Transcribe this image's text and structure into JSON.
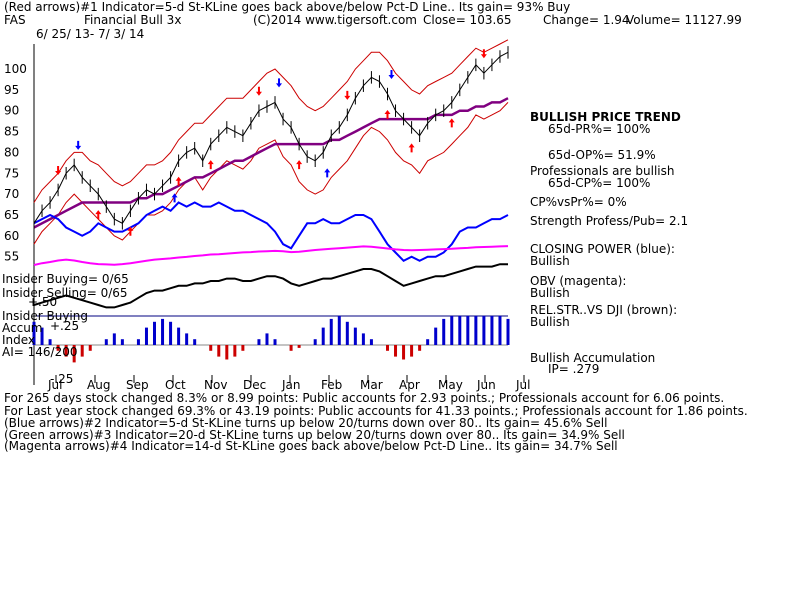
{
  "header": {
    "line1": "(Red arrows)#1 Indicator=5-d St-KLine goes back above/below Pct-D Line.. Its gain= 93% Buy",
    "symbol": "FAS",
    "name": "Financial Bull 3x",
    "copyright": "(C)2014 www.tigersoft.com",
    "close": "Close=  103.65",
    "change": "Change= 1.94",
    "volume": "Volume= 11127.99",
    "dates": "6/ 25/ 13- 7/ 3/ 14"
  },
  "right_labels": {
    "bullish_trend": "BULLISH PRICE TREND",
    "pr": "65d-PR%= 100%",
    "op": "65d-OP%= 51.9%",
    "prof_bullish": "Professionals are bullish",
    "cp": "65d-CP%= 100%",
    "cpvspr": "CP%vsPr%=  0%",
    "strength": "Strength Profess/Pub= 2.1",
    "closing_power": "CLOSING POWER (blue):",
    "closing_power_val": "Bullish",
    "obv": "OBV (magenta):",
    "obv_val": "Bullish",
    "relstr": "REL.STR..VS DJI (brown):",
    "relstr_val": "Bullish",
    "accum": "Bullish Accumulation",
    "ip": "IP=  .279"
  },
  "left_labels": {
    "insider_buying": "Insider Buying= 0/65",
    "insider_selling": "Insider Selling= 0/65",
    "insider_buying2": "Insider Buying",
    "accum": "Accum",
    "index": "Index",
    "ai": "AI= 146/200",
    "plus50": "+.50",
    "plus25": "+.25",
    "minus25": "-.25"
  },
  "footer": {
    "line1": "For 265 days stock changed  8.3% or  8.99 points:  Public accounts for  2.93 points.;  Professionals account for  6.06 points.",
    "line2": "For Last year stock changed  69.3% or  43.19 points:  Public accounts for  41.33 points.;  Professionals account for  1.86 points.",
    "line3": "(Blue arrows)#2 Indicator=5-d St-KLine turns up below 20/turns down over 80.. Its gain= 45.6% Sell",
    "line4": "(Green arrows)#3 Indicator=20-d St-KLine turns up below 20/turns down over 80.. Its gain= 34.9% Sell",
    "line5": "(Magenta arrows)#4 Indicator=14-d St-KLine goes back above/below Pct-D Line.. Its gain= 34.7% Sell"
  },
  "colors": {
    "price": "#000000",
    "bands": "#cc0000",
    "ma": "#800080",
    "closing_power": "#0000ff",
    "obv": "#ff00ff",
    "relstr": "#000000",
    "accum_pos": "#0000cc",
    "accum_neg": "#cc0000",
    "buy_arrow": "#ff0000",
    "sell_arrow": "#ff0000",
    "blue_arrow": "#0000ff"
  },
  "chart_data": {
    "type": "line",
    "title": "",
    "y_ticks": [
      55,
      60,
      65,
      70,
      75,
      80,
      85,
      90,
      95,
      100
    ],
    "ylim": [
      53,
      106
    ],
    "x_months": [
      "Jul",
      "Aug",
      "Sep",
      "Oct",
      "Nov",
      "Dec",
      "Jan",
      "Feb",
      "Mar",
      "Apr",
      "May",
      "Jun",
      "Jul"
    ],
    "price": [
      63,
      66,
      68,
      71,
      75,
      77,
      74,
      72,
      70,
      67,
      64,
      63,
      66,
      69,
      71,
      70,
      72,
      74,
      78,
      80,
      81,
      78,
      82,
      84,
      86,
      85,
      84,
      87,
      90,
      91,
      92,
      88,
      86,
      82,
      79,
      78,
      80,
      84,
      86,
      89,
      93,
      96,
      98,
      97,
      94,
      90,
      88,
      86,
      84,
      87,
      89,
      90,
      92,
      95,
      98,
      101,
      99,
      101,
      103,
      104
    ],
    "upper_band": [
      68,
      71,
      73,
      75,
      78,
      80,
      80,
      78,
      77,
      75,
      73,
      72,
      73,
      75,
      77,
      77,
      78,
      80,
      83,
      85,
      87,
      87,
      89,
      91,
      93,
      93,
      93,
      95,
      97,
      99,
      100,
      98,
      96,
      93,
      91,
      90,
      91,
      93,
      95,
      97,
      100,
      102,
      104,
      104,
      102,
      99,
      97,
      95,
      94,
      96,
      97,
      98,
      99,
      101,
      103,
      105,
      104,
      105,
      106,
      107
    ],
    "lower_band": [
      58,
      61,
      63,
      65,
      68,
      70,
      68,
      66,
      64,
      62,
      60,
      59,
      61,
      63,
      65,
      65,
      66,
      68,
      71,
      73,
      74,
      71,
      74,
      76,
      78,
      77,
      76,
      78,
      81,
      82,
      83,
      79,
      77,
      73,
      71,
      70,
      71,
      74,
      76,
      78,
      81,
      84,
      86,
      85,
      83,
      80,
      78,
      77,
      75,
      78,
      79,
      80,
      82,
      84,
      86,
      89,
      88,
      89,
      90,
      92
    ],
    "ma": [
      62,
      63,
      64,
      65,
      66,
      67,
      68,
      68,
      68,
      68,
      68,
      68,
      68,
      69,
      69,
      70,
      70,
      71,
      72,
      73,
      74,
      74,
      75,
      76,
      77,
      78,
      78,
      79,
      80,
      81,
      82,
      82,
      82,
      82,
      82,
      82,
      82,
      83,
      83,
      84,
      85,
      86,
      87,
      88,
      88,
      88,
      88,
      88,
      88,
      88,
      89,
      89,
      89,
      90,
      90,
      91,
      91,
      92,
      92,
      93
    ],
    "closing_power": [
      63,
      64,
      65,
      64,
      62,
      61,
      60,
      61,
      63,
      62,
      61,
      61,
      62,
      63,
      65,
      66,
      67,
      66,
      68,
      67,
      68,
      67,
      67,
      68,
      67,
      66,
      66,
      65,
      64,
      63,
      61,
      58,
      57,
      60,
      63,
      63,
      64,
      63,
      63,
      64,
      65,
      65,
      64,
      61,
      58,
      56,
      54,
      55,
      54,
      55,
      55,
      56,
      58,
      61,
      62,
      62,
      63,
      64,
      64,
      65
    ],
    "obv": [
      50,
      50.6,
      51,
      51.5,
      51.8,
      51.5,
      51,
      50.6,
      50.3,
      50.2,
      50.1,
      50.3,
      50.6,
      51,
      51.4,
      51.8,
      52,
      52.2,
      52.5,
      52.7,
      53,
      53.2,
      53.5,
      53.6,
      53.8,
      54,
      54.2,
      54.3,
      54.5,
      54.6,
      54.7,
      54.6,
      54.3,
      54.4,
      54.7,
      55,
      55.2,
      55.4,
      55.6,
      55.8,
      56,
      56.2,
      56.1,
      55.8,
      55.5,
      55.2,
      55,
      54.9,
      55,
      55.1,
      55.2,
      55.3,
      55.4,
      55.6,
      55.7,
      55.9,
      56,
      56.1,
      56.2,
      56.3
    ],
    "relstr": [
      40,
      41,
      42,
      43,
      44,
      43,
      42,
      41,
      40,
      39,
      39,
      40,
      41,
      43,
      45,
      46,
      46,
      47,
      48,
      48,
      49,
      49,
      50,
      50,
      51,
      51,
      50,
      50,
      51,
      52,
      52,
      51,
      49,
      48,
      49,
      50,
      51,
      51,
      52,
      53,
      54,
      55,
      55,
      54,
      52,
      50,
      48,
      49,
      50,
      51,
      52,
      52,
      53,
      54,
      55,
      56,
      56,
      56,
      57,
      57
    ],
    "accum": [
      0.4,
      0.3,
      0.1,
      -0.1,
      -0.2,
      -0.3,
      -0.2,
      -0.1,
      0,
      0.1,
      0.2,
      0.1,
      0,
      0.1,
      0.3,
      0.4,
      0.45,
      0.4,
      0.3,
      0.2,
      0.1,
      0,
      -0.1,
      -0.2,
      -0.25,
      -0.2,
      -0.1,
      0,
      0.1,
      0.2,
      0.1,
      0,
      -0.1,
      -0.05,
      0,
      0.1,
      0.3,
      0.45,
      0.5,
      0.4,
      0.3,
      0.2,
      0.1,
      0,
      -0.1,
      -0.2,
      -0.25,
      -0.2,
      -0.1,
      0.1,
      0.3,
      0.45,
      0.5,
      0.5,
      0.5,
      0.5,
      0.5,
      0.5,
      0.5,
      0.45
    ]
  }
}
